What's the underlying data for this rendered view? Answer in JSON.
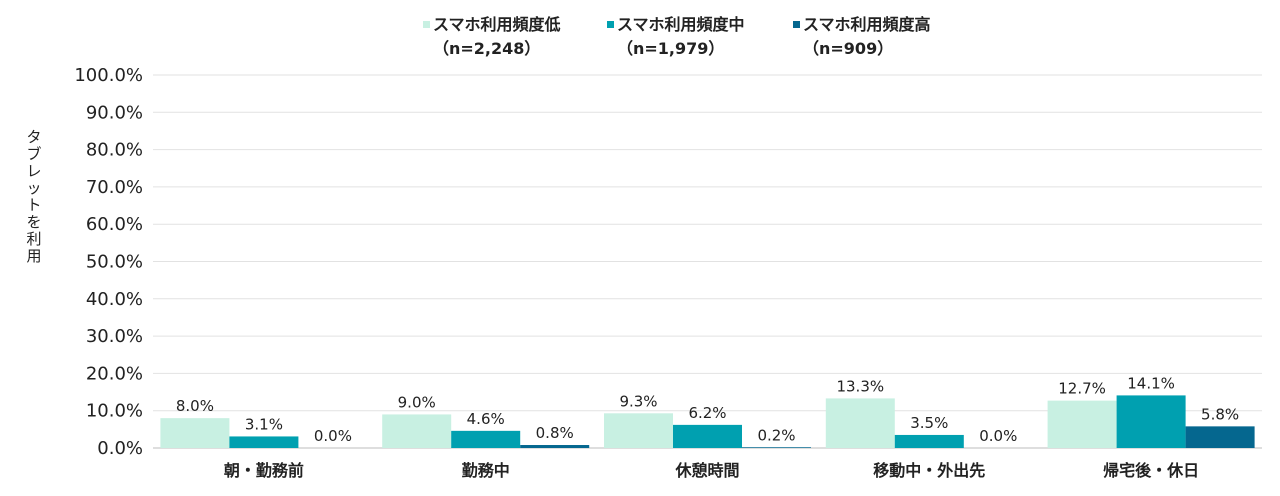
{
  "chart_data": {
    "type": "bar",
    "ylabel": "タブレットを利用",
    "xlabel": "",
    "ylim": [
      0,
      100
    ],
    "yticks": [
      "0.0%",
      "10.0%",
      "20.0%",
      "30.0%",
      "40.0%",
      "50.0%",
      "60.0%",
      "70.0%",
      "80.0%",
      "90.0%",
      "100.0%"
    ],
    "grid": true,
    "legend_position": "top",
    "categories": [
      "朝・勤務前",
      "勤務中",
      "休憩時間",
      "移動中・外出先",
      "帰宅後・休日"
    ],
    "series": [
      {
        "name": "スマホ利用頻度低",
        "sample": "（n=2,248）",
        "color": "#c8f0e2",
        "values": [
          8.0,
          9.0,
          9.3,
          13.3,
          12.7
        ],
        "labels": [
          "8.0%",
          "9.0%",
          "9.3%",
          "13.3%",
          "12.7%"
        ]
      },
      {
        "name": "スマホ利用頻度中",
        "sample": "（n=1,979）",
        "color": "#00a0b0",
        "values": [
          3.1,
          4.6,
          6.2,
          3.5,
          14.1
        ],
        "labels": [
          "3.1%",
          "4.6%",
          "6.2%",
          "3.5%",
          "14.1%"
        ]
      },
      {
        "name": "スマホ利用頻度高",
        "sample": "（n=909）",
        "color": "#05678f",
        "values": [
          0.0,
          0.8,
          0.2,
          0.0,
          5.8
        ],
        "labels": [
          "0.0%",
          "0.8%",
          "0.2%",
          "0.0%",
          "5.8%"
        ]
      }
    ]
  }
}
